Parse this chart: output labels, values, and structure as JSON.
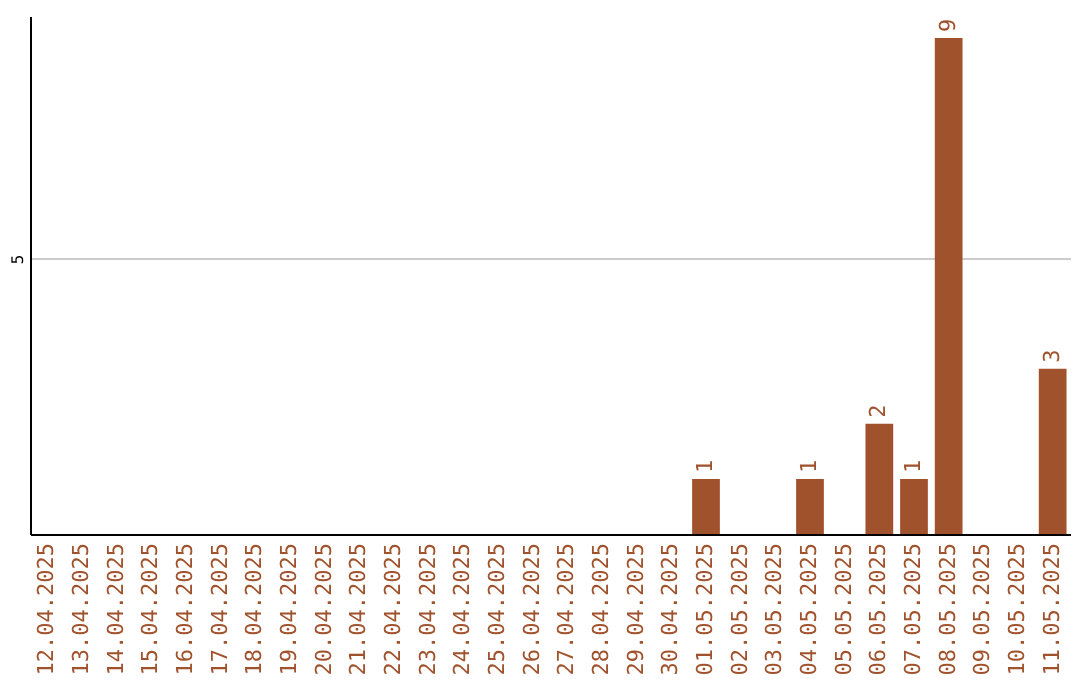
{
  "chart_data": {
    "type": "bar",
    "categories": [
      "12.04.2025",
      "13.04.2025",
      "14.04.2025",
      "15.04.2025",
      "16.04.2025",
      "17.04.2025",
      "18.04.2025",
      "19.04.2025",
      "20.04.2025",
      "21.04.2025",
      "22.04.2025",
      "23.04.2025",
      "24.04.2025",
      "25.04.2025",
      "26.04.2025",
      "27.04.2025",
      "28.04.2025",
      "29.04.2025",
      "30.04.2025",
      "01.05.2025",
      "02.05.2025",
      "03.05.2025",
      "04.05.2025",
      "05.05.2025",
      "06.05.2025",
      "07.05.2025",
      "08.05.2025",
      "09.05.2025",
      "10.05.2025",
      "11.05.2025"
    ],
    "values": [
      null,
      null,
      null,
      null,
      null,
      null,
      null,
      null,
      null,
      null,
      null,
      null,
      null,
      null,
      null,
      null,
      null,
      null,
      null,
      1,
      null,
      null,
      1,
      null,
      2,
      1,
      9,
      null,
      null,
      3
    ],
    "color": "#a0522d",
    "ylim": [
      0,
      9.4
    ],
    "yticks": [
      5
    ],
    "grid": "y",
    "data_labels": true
  }
}
